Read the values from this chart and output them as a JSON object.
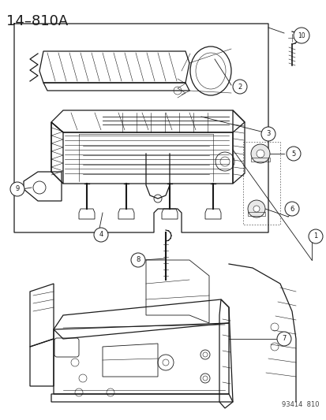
{
  "title": "14–810A",
  "catalog_number": "93414  810",
  "background_color": "#ffffff",
  "line_color": "#1a1a1a",
  "fig_width": 4.14,
  "fig_height": 5.33,
  "dpi": 100
}
